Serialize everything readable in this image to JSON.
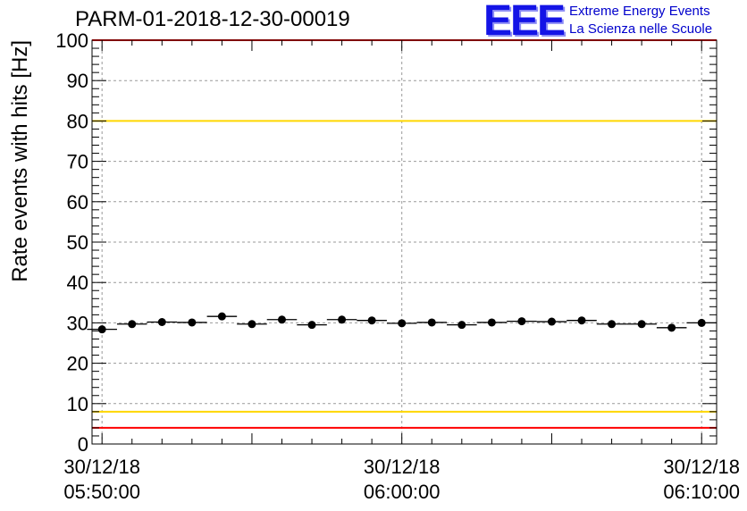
{
  "header": {
    "run_title": "PARM-01-2018-12-30-00019",
    "logo_text": "EEE",
    "logo_line1": "Extreme Energy Events",
    "logo_line2": "La Scienza nelle Scuole"
  },
  "colors": {
    "red_limit": "#ff0000",
    "yellow_limit": "#ffd700",
    "markers": "#000000",
    "logo": "#1414e6"
  },
  "chart_data": {
    "type": "scatter",
    "title": "PARM-01-2018-12-30-00019",
    "ylabel": "Rate events with hits [Hz]",
    "xlabel": "",
    "ylim": [
      0,
      100
    ],
    "xlim": [
      "2018-12-30 05:49:40",
      "2018-12-30 06:10:30"
    ],
    "grid": true,
    "y_ticks": [
      "0",
      "10",
      "20",
      "30",
      "40",
      "50",
      "60",
      "70",
      "80",
      "90",
      "100"
    ],
    "x_tick_labels": [
      {
        "time": "2018-12-30 05:50:00",
        "line1": "30/12/18",
        "line2": "05:50:00"
      },
      {
        "time": "2018-12-30 06:00:00",
        "line1": "30/12/18",
        "line2": "06:00:00"
      },
      {
        "time": "2018-12-30 06:10:00",
        "line1": "30/12/18",
        "line2": "06:10:00"
      }
    ],
    "reference_lines": [
      {
        "y": 100,
        "color": "red"
      },
      {
        "y": 80,
        "color": "yellow"
      },
      {
        "y": 8,
        "color": "yellow"
      },
      {
        "y": 4,
        "color": "red"
      }
    ],
    "series": [
      {
        "x": [
          "2018-12-30 05:50:00",
          "2018-12-30 05:51:00",
          "2018-12-30 05:52:00",
          "2018-12-30 05:53:00",
          "2018-12-30 05:54:00",
          "2018-12-30 05:55:00",
          "2018-12-30 05:56:00",
          "2018-12-30 05:57:00",
          "2018-12-30 05:58:00",
          "2018-12-30 05:59:00",
          "2018-12-30 06:00:00",
          "2018-12-30 06:01:00",
          "2018-12-30 06:02:00",
          "2018-12-30 06:03:00",
          "2018-12-30 06:04:00",
          "2018-12-30 06:05:00",
          "2018-12-30 06:06:00",
          "2018-12-30 06:07:00",
          "2018-12-30 06:08:00",
          "2018-12-30 06:09:00",
          "2018-12-30 06:10:00"
        ],
        "y": [
          28.4,
          29.7,
          30.2,
          30.1,
          31.6,
          29.7,
          30.8,
          29.5,
          30.8,
          30.6,
          29.9,
          30.1,
          29.5,
          30.1,
          30.4,
          30.3,
          30.6,
          29.7,
          29.7,
          28.8,
          30.0
        ],
        "x_bin_width_minutes": 1
      }
    ]
  }
}
